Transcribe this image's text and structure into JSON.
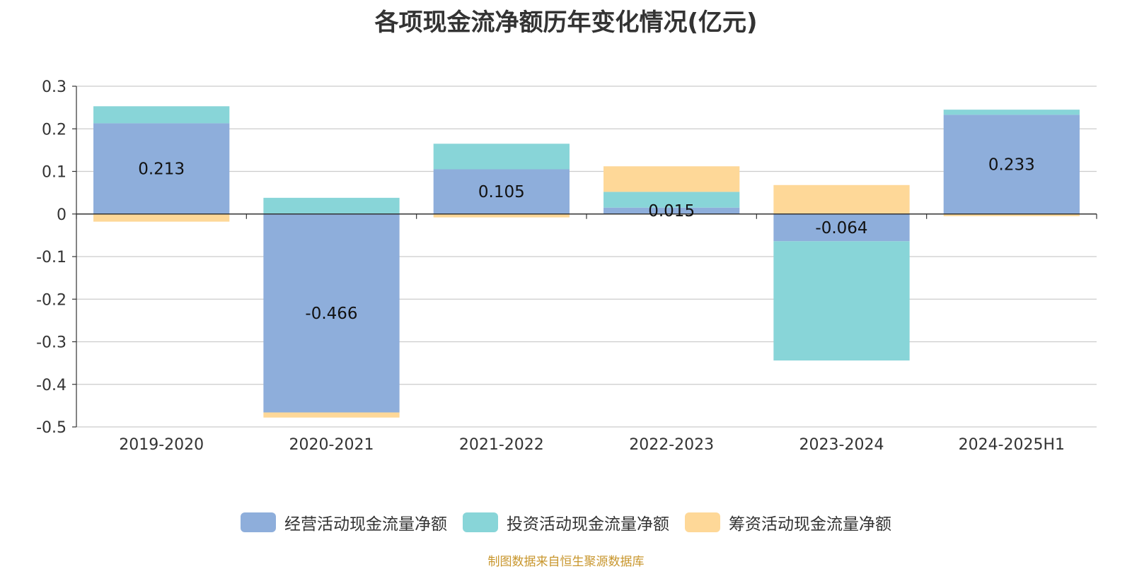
{
  "chart_data": {
    "type": "bar",
    "stacked": true,
    "title": "各项现金流净额历年变化情况(亿元)",
    "categories": [
      "2019-2020",
      "2020-2021",
      "2021-2022",
      "2022-2023",
      "2023-2024",
      "2024-2025H1"
    ],
    "series": [
      {
        "name": "经营活动现金流量净额",
        "color": "#8eaedb",
        "values": [
          0.213,
          -0.466,
          0.105,
          0.015,
          -0.064,
          0.233
        ],
        "show_labels": true
      },
      {
        "name": "投资活动现金流量净额",
        "color": "#88d5d8",
        "values": [
          0.04,
          0.038,
          0.06,
          0.037,
          -0.28,
          0.012
        ],
        "show_labels": false
      },
      {
        "name": "筹资活动现金流量净额",
        "color": "#fed898",
        "values": [
          -0.018,
          -0.012,
          -0.008,
          0.06,
          0.068,
          -0.005
        ],
        "show_labels": false
      }
    ],
    "ylim": [
      -0.5,
      0.3
    ],
    "yticks": [
      "0.3",
      "0.2",
      "0.1",
      "0",
      "-0.1",
      "-0.2",
      "-0.3",
      "-0.4",
      "-0.5"
    ],
    "ytick_values": [
      0.3,
      0.2,
      0.1,
      0,
      -0.1,
      -0.2,
      -0.3,
      -0.4,
      -0.5
    ],
    "grid": true,
    "legend_position": "bottom-center",
    "xlabel": "",
    "ylabel": ""
  },
  "source_note": "制图数据来自恒生聚源数据库"
}
